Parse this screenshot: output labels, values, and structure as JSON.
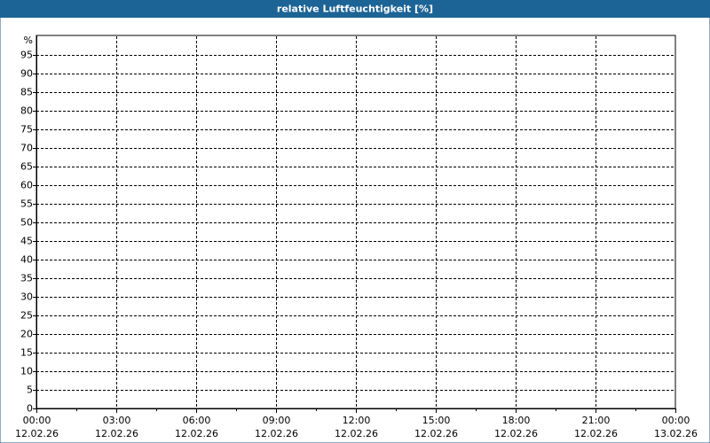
{
  "chart_data": {
    "type": "line",
    "title": "relative Luftfeuchtigkeit [%]",
    "y_label": "%",
    "series": [],
    "xlim": [
      0,
      24
    ],
    "xticks": [
      {
        "value": 0,
        "label": "00:00",
        "date": "12.02.26"
      },
      {
        "value": 3,
        "label": "03:00",
        "date": "12.02.26"
      },
      {
        "value": 6,
        "label": "06:00",
        "date": "12.02.26"
      },
      {
        "value": 9,
        "label": "09:00",
        "date": "12.02.26"
      },
      {
        "value": 12,
        "label": "12:00",
        "date": "12.02.26"
      },
      {
        "value": 15,
        "label": "15:00",
        "date": "12.02.26"
      },
      {
        "value": 18,
        "label": "18:00",
        "date": "12.02.26"
      },
      {
        "value": 21,
        "label": "21:00",
        "date": "12.02.26"
      },
      {
        "value": 24,
        "label": "00:00",
        "date": "13.02.26"
      }
    ],
    "ylim": [
      0,
      100
    ],
    "yticks": [
      0,
      5,
      10,
      15,
      20,
      25,
      30,
      35,
      40,
      45,
      50,
      55,
      60,
      65,
      70,
      75,
      80,
      85,
      90,
      95
    ],
    "grid": true
  }
}
